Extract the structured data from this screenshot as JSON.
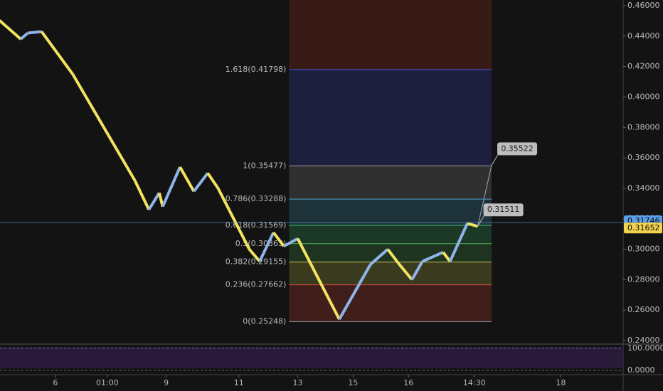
{
  "chart_data": {
    "type": "line",
    "x": [
      0,
      6,
      8,
      12,
      21,
      30,
      39,
      43,
      46,
      47,
      52,
      56,
      60,
      63,
      72,
      75,
      79,
      82,
      86,
      98,
      100,
      107,
      112,
      115,
      119,
      122,
      128,
      130,
      135,
      138
    ],
    "values": [
      0.45,
      0.438,
      0.442,
      0.443,
      0.415,
      0.38,
      0.345,
      0.326,
      0.337,
      0.328,
      0.354,
      0.338,
      0.35,
      0.34,
      0.3,
      0.292,
      0.311,
      0.302,
      0.307,
      0.254,
      0.262,
      0.29,
      0.3,
      0.291,
      0.28,
      0.292,
      0.298,
      0.292,
      0.317,
      0.315
    ],
    "up_color": "#8fb4e8",
    "down_color": "#f2e35e",
    "xlim": [
      0,
      180
    ],
    "ylim": [
      0.2377,
      0.4637
    ],
    "xticks": [
      {
        "value": 16,
        "label": "6"
      },
      {
        "value": 31,
        "label": "01:00"
      },
      {
        "value": 48,
        "label": "9"
      },
      {
        "value": 69,
        "label": "11"
      },
      {
        "value": 86,
        "label": "13"
      },
      {
        "value": 102,
        "label": "15"
      },
      {
        "value": 118,
        "label": "16"
      },
      {
        "value": 137,
        "label": "14:30"
      },
      {
        "value": 162,
        "label": "18"
      }
    ],
    "yticks": [
      {
        "value": 0.46,
        "label": "0.46000"
      },
      {
        "value": 0.44,
        "label": "0.44000"
      },
      {
        "value": 0.42,
        "label": "0.42000"
      },
      {
        "value": 0.4,
        "label": "0.40000"
      },
      {
        "value": 0.38,
        "label": "0.38000"
      },
      {
        "value": 0.36,
        "label": "0.36000"
      },
      {
        "value": 0.34,
        "label": "0.34000"
      },
      {
        "value": 0.32,
        "label": "0.32000"
      },
      {
        "value": 0.3,
        "label": "0.30000"
      },
      {
        "value": 0.28,
        "label": "0.28000"
      },
      {
        "value": 0.26,
        "label": "0.26000"
      },
      {
        "value": 0.24,
        "label": "0.24000"
      }
    ],
    "fibonacci": {
      "x_range": [
        83.5,
        142
      ],
      "top_zone_color": "#c0392b",
      "levels": [
        {
          "label": "0(0.25248)",
          "value": 0.25248,
          "color": "#9a9a9a"
        },
        {
          "label": "0.236(0.27662)",
          "value": 0.27662,
          "color": "#e0483e"
        },
        {
          "label": "0.382(0.29155)",
          "value": 0.29155,
          "color": "#c8c84a"
        },
        {
          "label": "0.5(0.30363)",
          "value": 0.30363,
          "color": "#4caf50"
        },
        {
          "label": "0.618(0.31569)",
          "value": 0.31569,
          "color": "#3fbf6f"
        },
        {
          "label": "0.786(0.33288)",
          "value": 0.33288,
          "color": "#4aa3c8"
        },
        {
          "label": "1(0.35477)",
          "value": 0.35477,
          "color": "#9a9a9a"
        },
        {
          "label": "1.618(0.41798)",
          "value": 0.41798,
          "color": "#3f51d8"
        }
      ]
    },
    "price_tags": [
      {
        "label": "0.31746",
        "value": 0.31746,
        "color": "#5b9ee8"
      },
      {
        "label": "0.31652",
        "value": 0.31652,
        "color": "#f2d34e"
      }
    ],
    "callouts": [
      {
        "label": "0.35522",
        "value": 0.35522,
        "x": 142
      },
      {
        "label": "0.31511",
        "value": 0.31511,
        "x": 138
      }
    ],
    "oscillator": {
      "ylim": [
        -20,
        120
      ],
      "yticks": [
        {
          "value": 100,
          "label": "100.0000"
        },
        {
          "value": 0,
          "label": "0.0000"
        }
      ]
    }
  }
}
